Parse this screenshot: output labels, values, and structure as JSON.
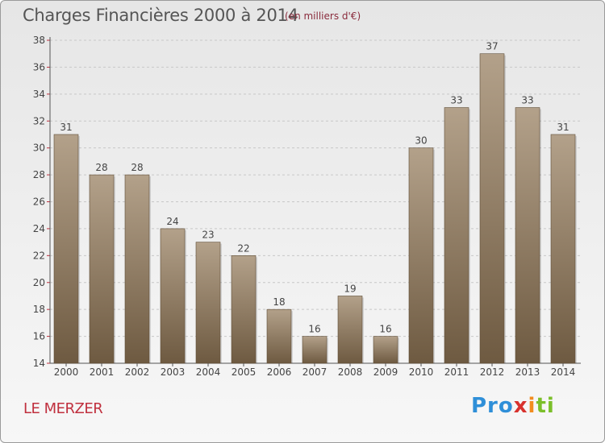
{
  "header": {
    "title": "Charges Financières 2000 à 2014",
    "subtitle": "(en milliers d'€)"
  },
  "footer": {
    "commune": "LE MERZER",
    "logo": {
      "p1": "Pro",
      "p2": "x",
      "p3": "i",
      "p4": "ti"
    }
  },
  "colors": {
    "bar_light": "#b3a18a",
    "bar_dark": "#6e5a41",
    "axis": "#555555",
    "grid": "#c8c8c8",
    "tick_red": "#c0303e"
  },
  "chart_data": {
    "type": "bar",
    "categories": [
      "2000",
      "2001",
      "2002",
      "2003",
      "2004",
      "2005",
      "2006",
      "2007",
      "2008",
      "2009",
      "2010",
      "2011",
      "2012",
      "2013",
      "2014"
    ],
    "values": [
      31,
      28,
      28,
      24,
      23,
      22,
      18,
      16,
      19,
      16,
      30,
      33,
      37,
      33,
      31
    ],
    "value_labels": [
      "31",
      "28",
      "28",
      "24",
      "23",
      "22",
      "18",
      "16",
      "19",
      "16",
      "30",
      "33",
      "37",
      "33",
      "31"
    ],
    "ylim": [
      14,
      38
    ],
    "yticks": [
      14,
      16,
      18,
      20,
      22,
      24,
      26,
      28,
      30,
      32,
      34,
      36,
      38
    ],
    "ytick_labels": [
      "14",
      "16",
      "18",
      "20",
      "22",
      "24",
      "26",
      "28",
      "30",
      "32",
      "34",
      "36",
      "38"
    ],
    "grid": true,
    "grid_axis": "y",
    "legend": "none"
  }
}
